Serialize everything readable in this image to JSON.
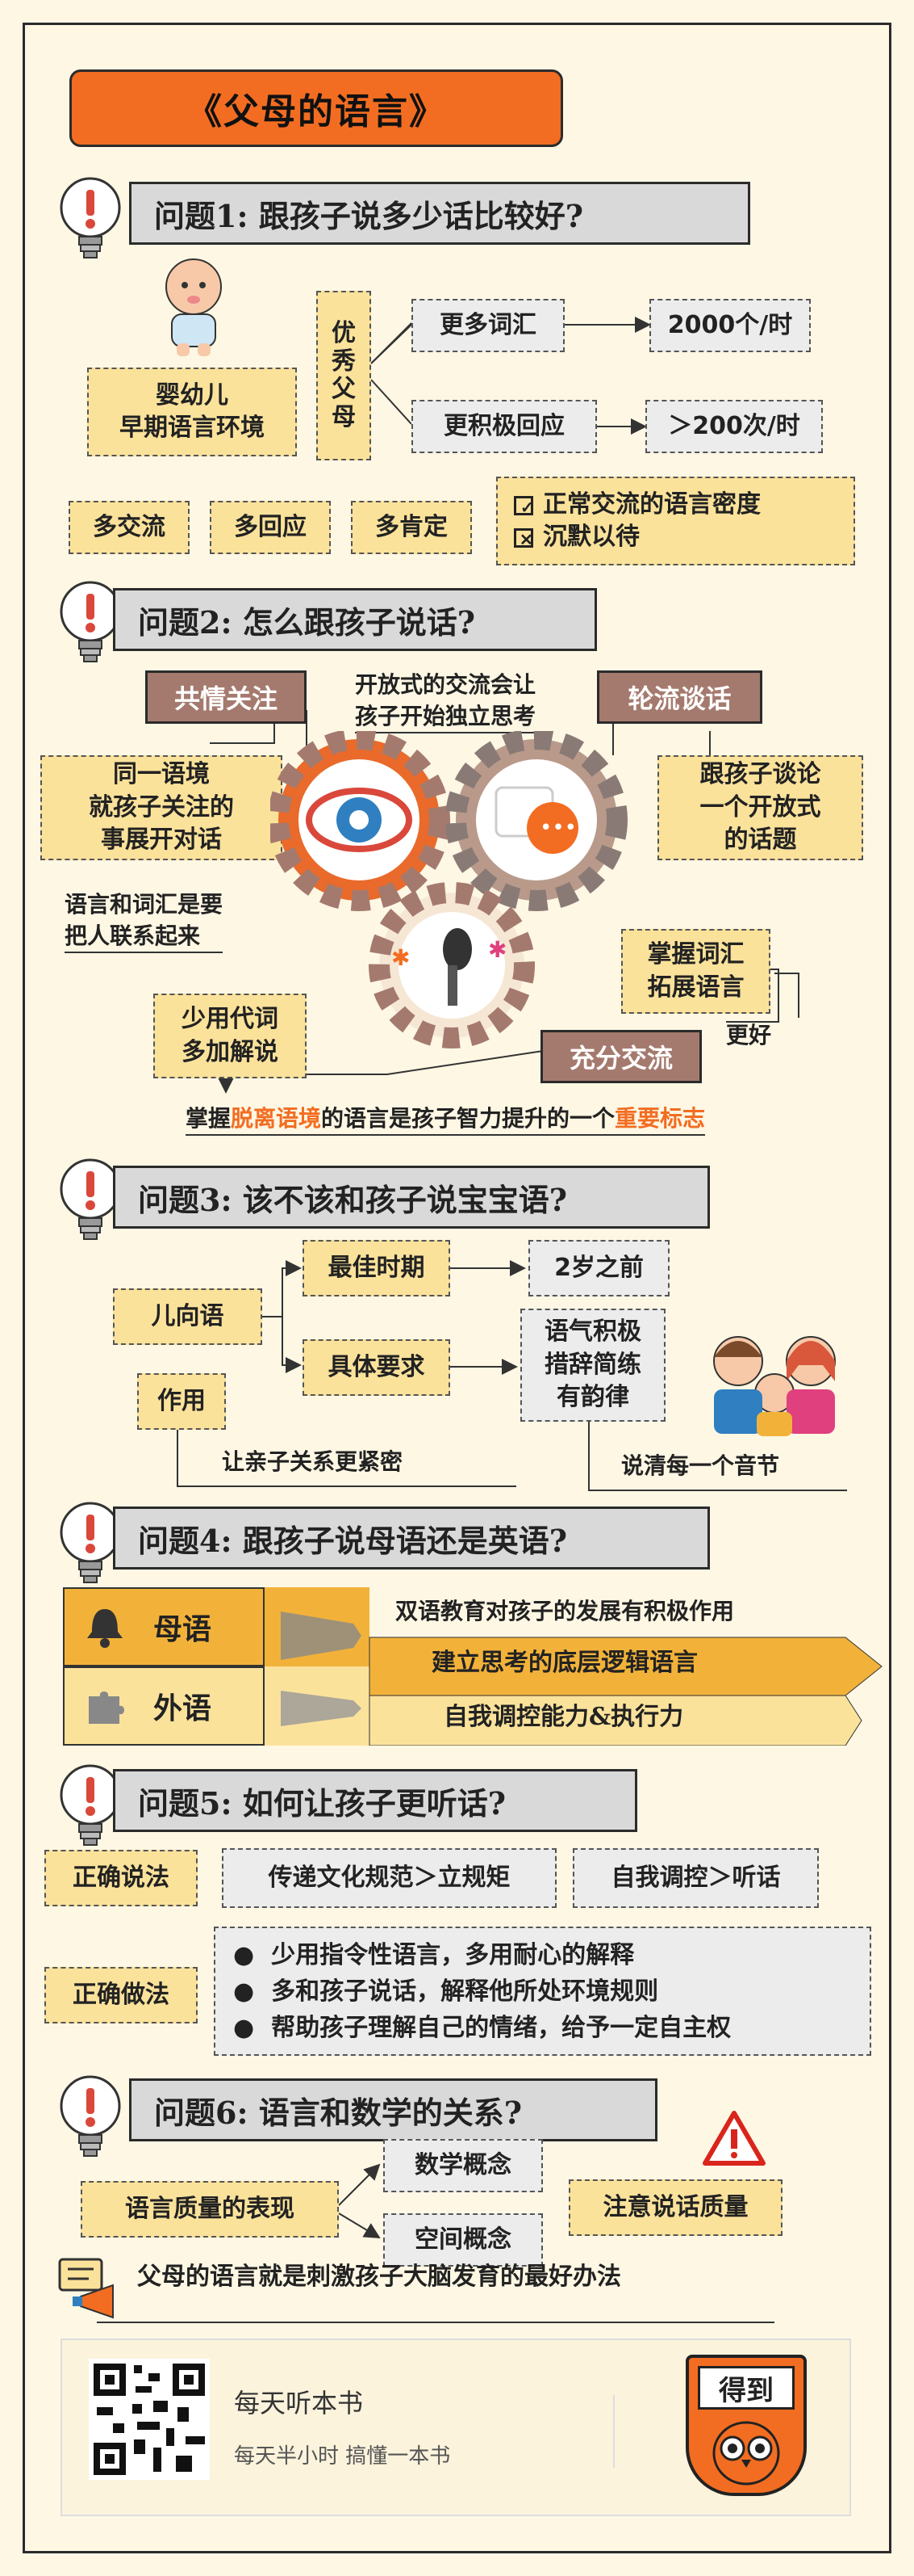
{
  "title": "《父母的语言》",
  "q1": {
    "question": "问题1:  跟孩子说多少话比较好?",
    "infant_label": "婴幼儿\n早期语言环境",
    "parent_label": "优\n秀\n父\n母",
    "more_words": "更多词汇",
    "words_rate": "2000个/时",
    "more_responses": "更积极回应",
    "responses_rate": "＞200次/时",
    "tags": [
      "多交流",
      "多回应",
      "多肯定"
    ],
    "check_items": [
      "正常交流的语言密度",
      "沉默以待"
    ]
  },
  "q2": {
    "question": "问题2:  怎么跟孩子说话?",
    "empathy": "共情关注",
    "open_talk_note": "开放式的交流会让\n孩子开始独立思考",
    "turn_taking": "轮流谈话",
    "same_context": "同一语境\n就孩子关注的\n事展开对话",
    "open_topic": "跟孩子谈论\n一个开放式\n的话题",
    "connect_people": "语言和词汇是要\n把人联系起来",
    "master_vocab": "掌握词汇\n拓展语言",
    "fewer_pronouns": "少用代词\n多加解说",
    "full_communication": "充分交流",
    "better": "更好",
    "conclusion_part1": "掌握",
    "conclusion_part2": "脱离语境",
    "conclusion_part3": "的语言是孩子智力提升的一个",
    "conclusion_part4": "重要标志"
  },
  "q3": {
    "question": "问题3:  该不该和孩子说宝宝语?",
    "child_speech": "儿向语",
    "best_period": "最佳时期",
    "before_two": "2岁之前",
    "requirements": "具体要求",
    "req_detail": "语气积极\n措辞简练\n有韵律",
    "effect": "作用",
    "effect_detail": "让亲子关系更紧密",
    "clear_syllable": "说清每一个音节"
  },
  "q4": {
    "question": "问题4:  跟孩子说母语还是英语?",
    "mother_tongue": "母语",
    "foreign_language": "外语",
    "bilingual_note": "双语教育对孩子的发展有积极作用",
    "mother_effect": "建立思考的底层逻辑语言",
    "foreign_effect": "自我调控能力&执行力"
  },
  "q5": {
    "question": "问题5:  如何让孩子更听话?",
    "correct_saying": "正确说法",
    "saying_1": "传递文化规范＞立规矩",
    "saying_2": "自我调控＞听话",
    "correct_doing": "正确做法",
    "doing_items": [
      "少用指令性语言，多用耐心的解释",
      "多和孩子说话，解释他所处环境规则",
      "帮助孩子理解自己的情绪，给予一定自主权"
    ]
  },
  "q6": {
    "question": "问题6:  语言和数学的关系?",
    "quality": "语言质量的表现",
    "math_concept": "数学概念",
    "space_concept": "空间概念",
    "attention": "注意说话质量"
  },
  "summary": "父母的语言就是刺激孩子大脑发育的最好办法",
  "footer": {
    "app_title": "每天听本书",
    "app_sub": "每天半小时  搞懂一本书",
    "logo_text": "得到"
  },
  "colors": {
    "orange": "#f26d22",
    "yellow": "#fbe29b",
    "gray": "#d9d9d9",
    "brown": "#a57a6e",
    "gear": "#8a7a76"
  }
}
